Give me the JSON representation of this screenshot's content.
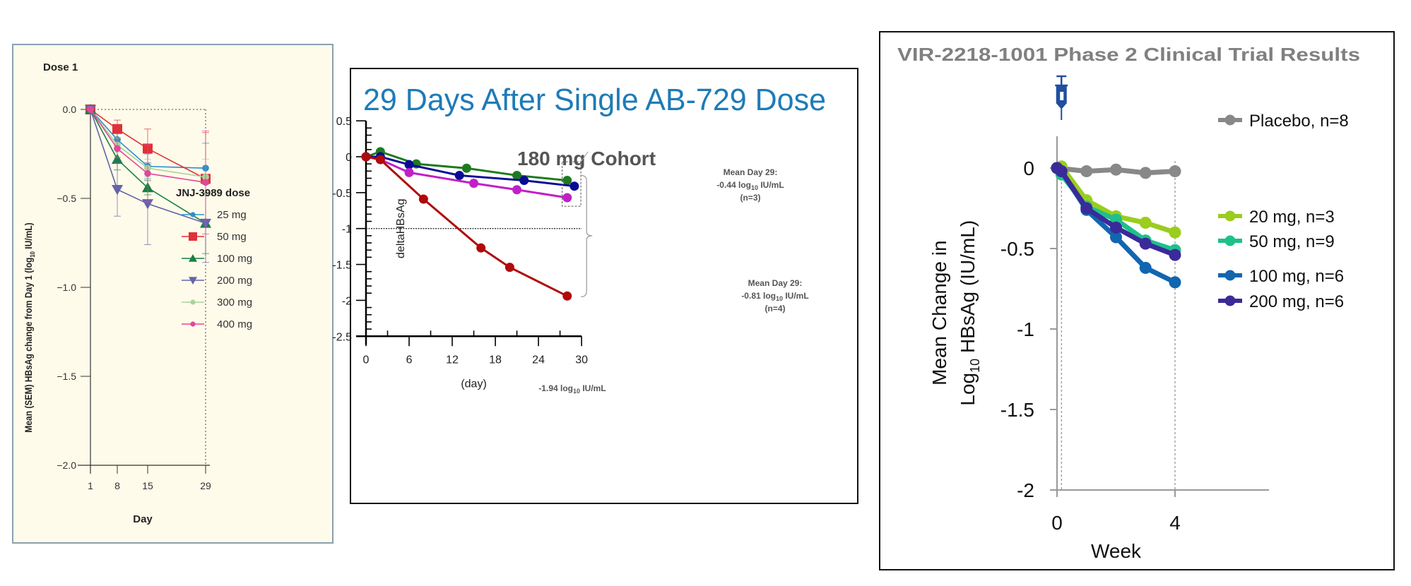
{
  "chart_data": [
    {
      "type": "line",
      "panel": "jnj",
      "title": "Dose 1",
      "xlabel": "Day",
      "ylabel": "Mean (SEM) HBsAg change from Day 1 (log10 IU/mL)",
      "ylabel_parts": {
        "pre": "Mean (SEM) HBsAg change  from Day 1 (log",
        "sub": "10",
        "post": " IU/mL)"
      },
      "x_ticks": [
        1,
        8,
        15,
        29
      ],
      "x_tick_labels": [
        "1",
        "8",
        "15",
        "29"
      ],
      "y_ticks": [
        0.0,
        -0.5,
        -1.0,
        -1.5,
        -2.0
      ],
      "y_tick_labels": [
        "0.0",
        "−0.5",
        "−1.0",
        "−1.5",
        "−2.0"
      ],
      "ylim": [
        -2.0,
        0.0
      ],
      "xlim": [
        1,
        29
      ],
      "grid": false,
      "legend_title": "JNJ-3989 dose",
      "legend_position": "right",
      "x": [
        1,
        8,
        15,
        29
      ],
      "series": [
        {
          "name": "25 mg",
          "color": "#2b8fca",
          "marker": "circle",
          "values": [
            0.0,
            -0.17,
            -0.32,
            -0.33
          ],
          "sem": [
            0.0,
            0.05,
            0.07,
            0.14
          ]
        },
        {
          "name": "50 mg",
          "color": "#e0303a",
          "marker": "square",
          "values": [
            0.0,
            -0.11,
            -0.22,
            -0.39
          ],
          "sem": [
            0.0,
            0.05,
            0.11,
            0.26
          ]
        },
        {
          "name": "100 mg",
          "color": "#1a7f45",
          "marker": "triangle-up",
          "values": [
            0.0,
            -0.28,
            -0.44,
            -0.64
          ],
          "sem": [
            0.0,
            0.06,
            0.04,
            0.17
          ]
        },
        {
          "name": "200 mg",
          "color": "#6464aa",
          "marker": "triangle-down",
          "values": [
            0.0,
            -0.45,
            -0.53,
            -0.64
          ],
          "sem": [
            0.0,
            0.15,
            0.23,
            0.22
          ]
        },
        {
          "name": "300 mg",
          "color": "#a9d39a",
          "marker": "circle",
          "values": [
            0.0,
            -0.2,
            -0.33,
            -0.38
          ],
          "sem": [
            0.0,
            0.04,
            0.05,
            0.1
          ]
        },
        {
          "name": "400 mg",
          "color": "#e0489a",
          "marker": "circle",
          "values": [
            0.0,
            -0.22,
            -0.36,
            -0.41
          ],
          "sem": [
            0.0,
            0.05,
            0.16,
            0.29
          ]
        }
      ]
    },
    {
      "type": "line",
      "panel": "ab729",
      "title": "29 Days After Single AB-729 Dose",
      "subtitle": "180 mg Cohort",
      "xlabel": "(day)",
      "ylabel": "deltaHBsAg",
      "x_ticks": [
        0,
        6,
        12,
        18,
        24,
        30
      ],
      "x_tick_labels": [
        "0",
        "6",
        "12",
        "18",
        "24",
        "30"
      ],
      "y_ticks": [
        0.5,
        0,
        -0.5,
        -1,
        -1.5,
        -2,
        -2.5
      ],
      "y_tick_labels": [
        "0.5",
        "0",
        "-0.5",
        "-1",
        "-1.5",
        "-2",
        "-2.5"
      ],
      "xlim": [
        0,
        30
      ],
      "ylim": [
        -2.5,
        0.5
      ],
      "reference_line": -1,
      "grid": false,
      "series": [
        {
          "name": "subject-green",
          "color": "#1f7a1f",
          "x": [
            0,
            2,
            7,
            14,
            21,
            28
          ],
          "values": [
            0,
            0.07,
            -0.1,
            -0.16,
            -0.26,
            -0.33
          ]
        },
        {
          "name": "subject-blue",
          "color": "#0a0a96",
          "x": [
            0,
            2,
            6,
            13,
            22,
            29
          ],
          "values": [
            0,
            0.0,
            -0.11,
            -0.26,
            -0.33,
            -0.41
          ]
        },
        {
          "name": "subject-magenta",
          "color": "#c020c8",
          "x": [
            0,
            2,
            6,
            15,
            21,
            28
          ],
          "values": [
            0,
            -0.04,
            -0.22,
            -0.37,
            -0.46,
            -0.57
          ]
        },
        {
          "name": "subject-red",
          "color": "#b00a0a",
          "x": [
            0,
            2,
            8,
            16,
            20,
            28
          ],
          "values": [
            0,
            -0.04,
            -0.59,
            -1.27,
            -1.54,
            -1.94
          ]
        }
      ],
      "annotations": [
        {
          "lines": [
            "Mean Day 29:",
            "-0.44 log",
            "10",
            " IU/mL",
            "(n=3)"
          ]
        },
        {
          "lines": [
            "Mean Day 29:",
            "-0.81 log",
            "10",
            " IU/mL",
            "(n=4)"
          ]
        },
        {
          "lines": [
            "-1.94 log",
            "10",
            " IU/mL"
          ]
        }
      ]
    },
    {
      "type": "line",
      "panel": "vir",
      "title": "VIR-2218-1001 Phase 2 Clinical Trial Results",
      "xlabel": "Week",
      "ylabel_line1": "Mean Change in",
      "ylabel_line2_pre": "Log",
      "ylabel_line2_sub": "10",
      "ylabel_line2_post": " HBsAg (IU/mL)",
      "x_ticks": [
        0,
        4
      ],
      "x_tick_labels": [
        "0",
        "4"
      ],
      "y_ticks": [
        0,
        -0.5,
        -1,
        -1.5,
        -2
      ],
      "y_tick_labels": [
        "0",
        "-0.5",
        "-1",
        "-1.5",
        "-2"
      ],
      "xlim": [
        0,
        8
      ],
      "ylim": [
        -2,
        0
      ],
      "grid": false,
      "legend_position": "right",
      "dose_marker": "syringe-icon",
      "series": [
        {
          "name": "Placebo, n=8",
          "color": "#888888",
          "x": [
            0,
            1,
            2,
            3,
            4
          ],
          "values": [
            0,
            -0.02,
            -0.01,
            -0.03,
            -0.02
          ]
        },
        {
          "name": "20 mg, n=3",
          "color": "#9acd1e",
          "x": [
            0,
            0.15,
            1,
            2,
            3,
            4
          ],
          "values": [
            0,
            0.01,
            -0.2,
            -0.3,
            -0.34,
            -0.4
          ]
        },
        {
          "name": "50 mg, n=9",
          "color": "#1ec08a",
          "x": [
            0,
            0.15,
            1,
            2,
            3,
            4
          ],
          "values": [
            0,
            -0.04,
            -0.24,
            -0.32,
            -0.45,
            -0.51
          ]
        },
        {
          "name": "100 mg, n=6",
          "color": "#1166b0",
          "x": [
            0,
            0.15,
            1,
            2,
            3,
            4
          ],
          "values": [
            0,
            -0.02,
            -0.26,
            -0.43,
            -0.62,
            -0.71
          ]
        },
        {
          "name": "200 mg, n=6",
          "color": "#3a2a9a",
          "x": [
            0,
            0.15,
            1,
            2,
            3,
            4
          ],
          "values": [
            0,
            -0.02,
            -0.25,
            -0.37,
            -0.47,
            -0.54
          ]
        }
      ]
    }
  ]
}
